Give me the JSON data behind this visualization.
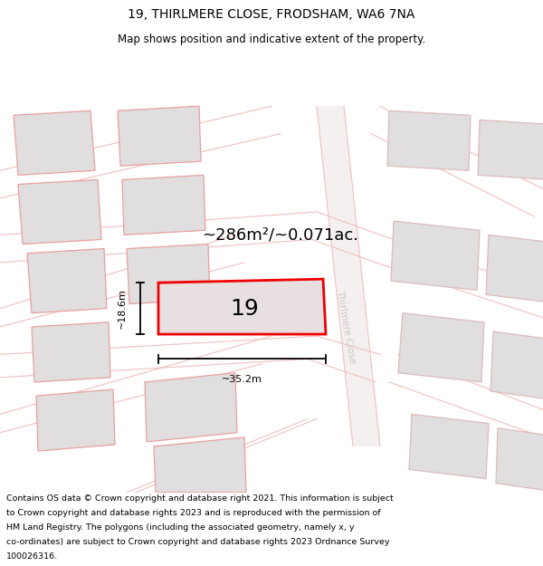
{
  "title": "19, THIRLMERE CLOSE, FRODSHAM, WA6 7NA",
  "subtitle": "Map shows position and indicative extent of the property.",
  "area_text": "~286m²/~0.071ac.",
  "width_label": "~35.2m",
  "height_label": "~18.6m",
  "property_number": "19",
  "street_label": "Thirlmere Close",
  "footer_lines": [
    "Contains OS data © Crown copyright and database right 2021. This information is subject",
    "to Crown copyright and database rights 2023 and is reproduced with the permission of",
    "HM Land Registry. The polygons (including the associated geometry, namely x, y",
    "co-ordinates) are subject to Crown copyright and database rights 2023 Ordnance Survey",
    "100026316."
  ],
  "map_bg": "#ffffff",
  "property_fill": "#e8e0e0",
  "property_edge": "#ee0000",
  "neighbor_fill": "#e0dede",
  "neighbor_edge": "#e8a0a0",
  "neighbor_outline": "#ddbbbb",
  "road_line": "#f0c0c0",
  "title_color": "#000000",
  "footer_color": "#000000",
  "street_label_color": "#c8c0c0"
}
